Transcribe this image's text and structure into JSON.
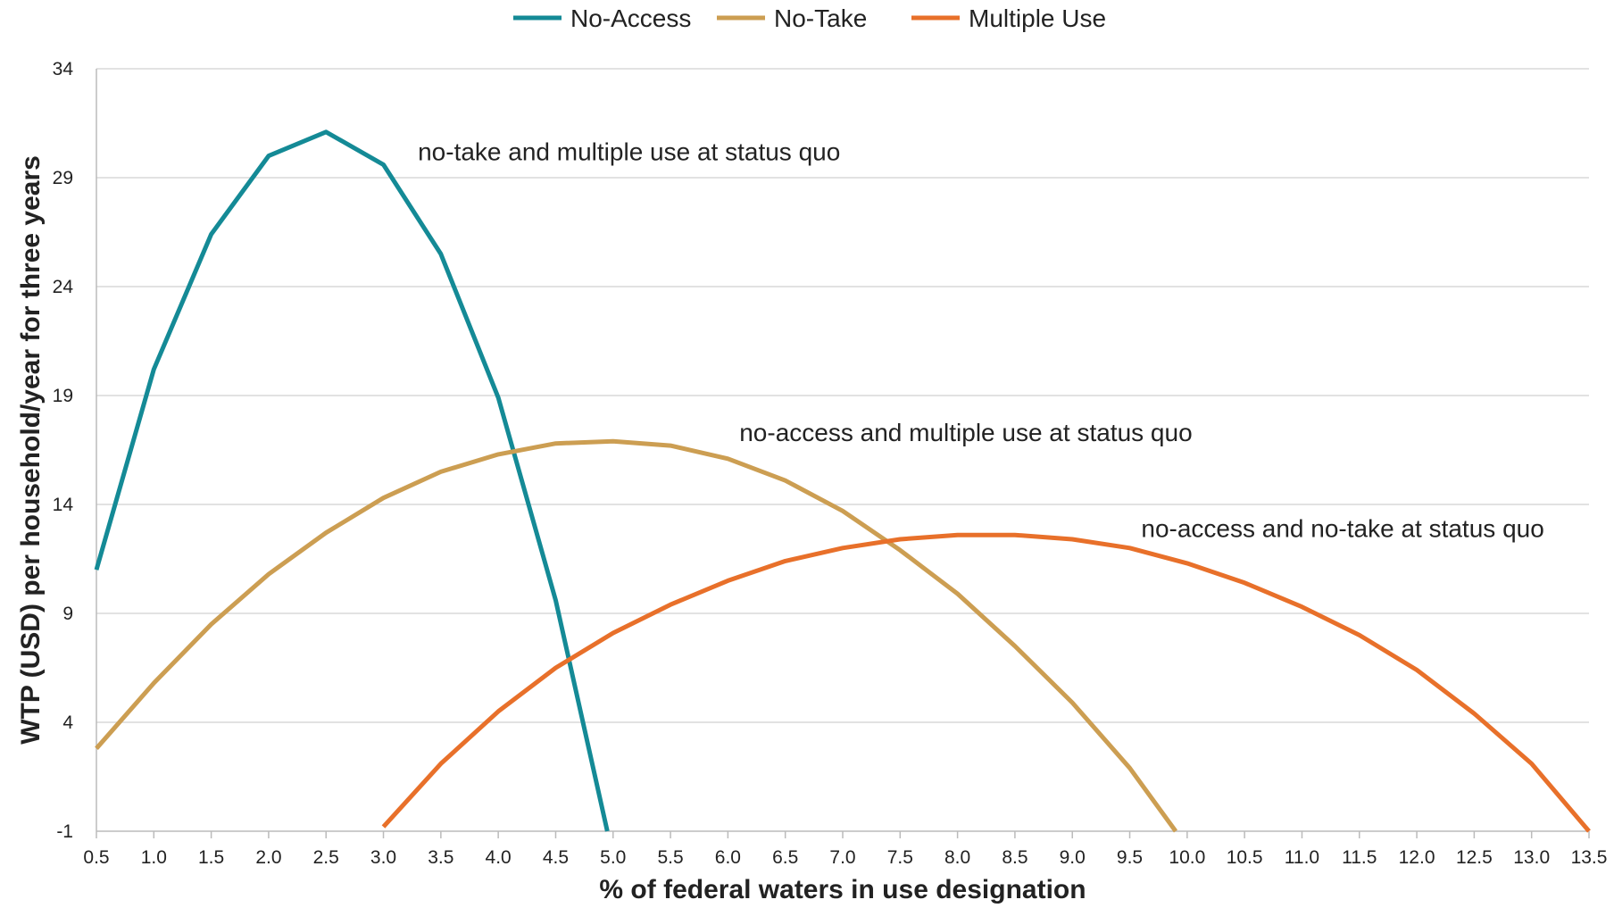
{
  "chart_data": {
    "type": "line",
    "xlabel": "% of federal waters in use designation",
    "ylabel": "WTP (USD) per household/year for three years",
    "xlim": [
      0.5,
      13.5
    ],
    "ylim": [
      -1,
      34
    ],
    "x_ticks": [
      "0.5",
      "1.0",
      "1.5",
      "2.0",
      "2.5",
      "3.0",
      "3.5",
      "4.0",
      "4.5",
      "5.0",
      "5.5",
      "6.0",
      "6.5",
      "7.0",
      "7.5",
      "8.0",
      "8.5",
      "9.0",
      "9.5",
      "10.0",
      "10.5",
      "11.0",
      "11.5",
      "12.0",
      "12.5",
      "13.0",
      "13.5"
    ],
    "y_ticks": [
      "34",
      "29",
      "24",
      "19",
      "14",
      "9",
      "4",
      "-1"
    ],
    "grid": "horizontal",
    "legend_position": "top-center",
    "series": [
      {
        "name": "No-Access",
        "color": "#148a96",
        "x": [
          0.5,
          1.0,
          1.5,
          2.0,
          2.5,
          3.0,
          3.5,
          4.0,
          4.5,
          4.95
        ],
        "y": [
          11.0,
          20.2,
          26.4,
          30.0,
          31.1,
          29.6,
          25.5,
          18.9,
          9.6,
          -1.0
        ]
      },
      {
        "name": "No-Take",
        "color": "#cc9e52",
        "x": [
          0.5,
          1.0,
          1.5,
          2.0,
          2.5,
          3.0,
          3.5,
          4.0,
          4.5,
          5.0,
          5.5,
          6.0,
          6.5,
          7.0,
          7.5,
          8.0,
          8.5,
          9.0,
          9.5,
          9.9
        ],
        "y": [
          2.8,
          5.8,
          8.5,
          10.8,
          12.7,
          14.3,
          15.5,
          16.3,
          16.8,
          16.9,
          16.7,
          16.1,
          15.1,
          13.7,
          11.9,
          9.9,
          7.5,
          4.9,
          1.9,
          -1.0
        ]
      },
      {
        "name": "Multiple Use",
        "color": "#e8702a",
        "x": [
          3.0,
          3.5,
          4.0,
          4.5,
          5.0,
          5.5,
          6.0,
          6.5,
          7.0,
          7.5,
          8.0,
          8.5,
          9.0,
          9.5,
          10.0,
          10.5,
          11.0,
          11.5,
          12.0,
          12.5,
          13.0,
          13.5
        ],
        "y": [
          -0.8,
          2.1,
          4.5,
          6.5,
          8.1,
          9.4,
          10.5,
          11.4,
          12.0,
          12.4,
          12.6,
          12.6,
          12.4,
          12.0,
          11.3,
          10.4,
          9.3,
          8.0,
          6.4,
          4.4,
          2.1,
          -1.0
        ]
      }
    ],
    "annotations": [
      {
        "text": "no-take and multiple use at status quo",
        "x": 3.3,
        "y": 29.8
      },
      {
        "text": "no-access and multiple use at status quo",
        "x": 6.1,
        "y": 16.9
      },
      {
        "text": "no-access and no-take at status quo",
        "x": 9.6,
        "y": 12.5
      }
    ]
  }
}
